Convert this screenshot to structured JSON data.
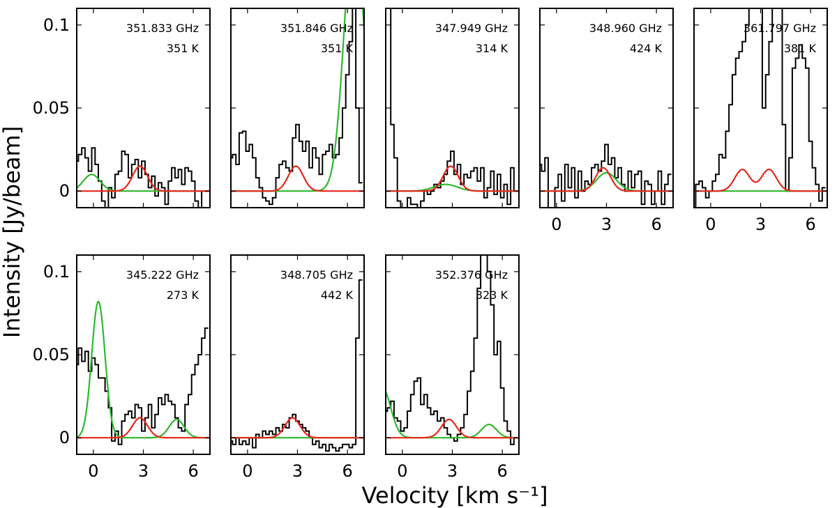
{
  "chart_data": {
    "type": "line",
    "xlabel": "Velocity [km s⁻¹]",
    "ylabel": "Intensity [Jy/beam]",
    "xlim": [
      -1,
      7
    ],
    "ylim": [
      -0.01,
      0.11
    ],
    "xticks": [
      0,
      3,
      6
    ],
    "yticks": [
      0,
      0.05,
      0.1
    ],
    "xtick_labels": [
      "0",
      "3",
      "6"
    ],
    "ytick_labels": [
      "0",
      "0.05",
      "0.1"
    ],
    "colors": {
      "observed": "#000000",
      "model_red": "#e8261a",
      "model_green": "#2eb82e"
    },
    "panels": [
      {
        "frequency": "351.833 GHz",
        "energy": "351 K",
        "red": [
          {
            "amp": 0.015,
            "center": 2.8,
            "sigma": 0.45
          }
        ],
        "green": [
          {
            "amp": 0.01,
            "center": -0.1,
            "sigma": 0.5
          }
        ],
        "spectrum": {
          "x": [
            -1.0,
            -0.8,
            -0.6,
            -0.4,
            -0.2,
            0.0,
            0.2,
            0.4,
            0.6,
            0.8,
            1.0,
            1.2,
            1.4,
            1.6,
            1.8,
            2.0,
            2.2,
            2.4,
            2.6,
            2.8,
            3.0,
            3.2,
            3.4,
            3.6,
            3.8,
            4.0,
            4.2,
            4.4,
            4.6,
            4.8,
            5.0,
            5.2,
            5.4,
            5.6,
            5.8,
            6.0,
            6.2,
            6.4,
            6.6,
            6.8
          ],
          "y": [
            0.018,
            0.022,
            0.026,
            0.02,
            0.012,
            0.026,
            0.016,
            0.006,
            -0.006,
            -0.01,
            0.002,
            -0.004,
            0.01,
            0.012,
            0.024,
            0.022,
            0.008,
            0.016,
            0.019,
            0.008,
            0.018,
            0.01,
            0.002,
            0.009,
            -0.003,
            0.005,
            0.002,
            -0.008,
            0.006,
            0.014,
            0.008,
            0.013,
            0.004,
            0.014,
            0.012,
            0.006,
            -0.006,
            -0.01,
            0.0,
            0.0
          ]
        }
      },
      {
        "frequency": "351.846 GHz",
        "energy": "351 K",
        "red": [
          {
            "amp": 0.015,
            "center": 2.9,
            "sigma": 0.45
          }
        ],
        "green": [
          {
            "amp": 0.16,
            "center": 6.4,
            "sigma": 0.6
          }
        ],
        "spectrum": {
          "x": [
            -1.0,
            -0.8,
            -0.6,
            -0.4,
            -0.2,
            0.0,
            0.2,
            0.4,
            0.6,
            0.8,
            1.0,
            1.2,
            1.4,
            1.6,
            1.8,
            2.0,
            2.2,
            2.4,
            2.6,
            2.8,
            3.0,
            3.2,
            3.4,
            3.6,
            3.8,
            4.0,
            4.2,
            4.4,
            4.6,
            4.8,
            5.0,
            5.2,
            5.4,
            5.6,
            5.8,
            6.0,
            6.2,
            6.4,
            6.6,
            6.8
          ],
          "y": [
            0.02,
            0.022,
            0.016,
            0.035,
            0.036,
            0.024,
            0.028,
            0.02,
            0.008,
            0.002,
            -0.004,
            -0.006,
            -0.008,
            -0.004,
            0.008,
            0.016,
            0.018,
            0.014,
            0.012,
            0.032,
            0.04,
            0.03,
            0.024,
            0.03,
            0.014,
            0.026,
            0.02,
            0.01,
            0.022,
            0.024,
            0.028,
            0.02,
            0.022,
            0.032,
            0.05,
            0.07,
            0.09,
            0.12,
            0.05,
            0.005
          ]
        }
      },
      {
        "frequency": "347.949 GHz",
        "energy": "314 K",
        "red": [
          {
            "amp": 0.015,
            "center": 2.9,
            "sigma": 0.45
          }
        ],
        "green": [
          {
            "amp": 0.004,
            "center": 2.6,
            "sigma": 0.7
          }
        ],
        "spectrum": {
          "x": [
            -1.0,
            -0.8,
            -0.6,
            -0.4,
            -0.2,
            0.0,
            0.2,
            0.4,
            0.6,
            0.8,
            1.0,
            1.2,
            1.4,
            1.6,
            1.8,
            2.0,
            2.2,
            2.4,
            2.6,
            2.8,
            3.0,
            3.2,
            3.4,
            3.6,
            3.8,
            4.0,
            4.2,
            4.4,
            4.6,
            4.8,
            5.0,
            5.2,
            5.4,
            5.6,
            5.8,
            6.0,
            6.2,
            6.4,
            6.6,
            6.8
          ],
          "y": [
            0.13,
            0.12,
            0.04,
            0.02,
            -0.006,
            -0.01,
            -0.014,
            -0.004,
            -0.008,
            -0.008,
            -0.012,
            -0.006,
            0.0,
            -0.002,
            0.0,
            0.004,
            0.002,
            0.006,
            0.01,
            0.018,
            0.024,
            0.01,
            0.016,
            0.004,
            0.01,
            0.008,
            0.012,
            0.014,
            0.006,
            0.014,
            -0.004,
            0.002,
            0.012,
            -0.002,
            0.01,
            -0.004,
            0.004,
            -0.008,
            0.014,
            0.0
          ]
        }
      },
      {
        "frequency": "348.960 GHz",
        "energy": "424 K",
        "red": [
          {
            "amp": 0.014,
            "center": 2.8,
            "sigma": 0.45
          }
        ],
        "green": [
          {
            "amp": 0.011,
            "center": 3.0,
            "sigma": 0.6
          }
        ],
        "spectrum": {
          "x": [
            -1.0,
            -0.8,
            -0.6,
            -0.4,
            -0.2,
            0.0,
            0.2,
            0.4,
            0.6,
            0.8,
            1.0,
            1.2,
            1.4,
            1.6,
            1.8,
            2.0,
            2.2,
            2.4,
            2.6,
            2.8,
            3.0,
            3.2,
            3.4,
            3.6,
            3.8,
            4.0,
            4.2,
            4.4,
            4.6,
            4.8,
            5.0,
            5.2,
            5.4,
            5.6,
            5.8,
            6.0,
            6.2,
            6.4,
            6.6,
            6.8
          ],
          "y": [
            0.016,
            0.012,
            0.02,
            -0.014,
            -0.01,
            0.002,
            0.01,
            -0.006,
            0.016,
            0.002,
            0.014,
            -0.004,
            0.012,
            0.0,
            0.006,
            0.004,
            0.014,
            0.016,
            0.012,
            0.018,
            0.028,
            0.016,
            0.02,
            0.008,
            0.014,
            0.004,
            0.0,
            0.012,
            0.002,
            0.01,
            0.012,
            -0.008,
            0.006,
            0.004,
            -0.008,
            0.0,
            0.012,
            -0.008,
            0.004,
            0.01
          ]
        }
      },
      {
        "frequency": "361.797 GHz",
        "energy": "381 K",
        "red": [
          {
            "amp": 0.013,
            "center": 1.9,
            "sigma": 0.45
          },
          {
            "amp": 0.013,
            "center": 3.5,
            "sigma": 0.45
          }
        ],
        "green": [],
        "spectrum": {
          "x": [
            -1.0,
            -0.8,
            -0.6,
            -0.4,
            -0.2,
            0.0,
            0.2,
            0.4,
            0.6,
            0.8,
            1.0,
            1.2,
            1.4,
            1.6,
            1.8,
            2.0,
            2.2,
            2.4,
            2.6,
            2.8,
            3.0,
            3.2,
            3.4,
            3.6,
            3.8,
            4.0,
            4.2,
            4.4,
            4.6,
            4.8,
            5.0,
            5.2,
            5.4,
            5.6,
            5.8,
            6.0,
            6.2,
            6.4,
            6.6,
            6.8
          ],
          "y": [
            -0.01,
            0.004,
            0.006,
            0.002,
            -0.004,
            0.0,
            0.006,
            0.01,
            0.022,
            0.02,
            0.036,
            0.052,
            0.07,
            0.08,
            0.084,
            0.09,
            0.1,
            0.12,
            0.13,
            0.12,
            0.12,
            0.05,
            0.07,
            0.09,
            0.11,
            0.12,
            0.12,
            0.04,
            0.0,
            0.02,
            0.074,
            0.08,
            0.088,
            0.08,
            0.074,
            0.03,
            0.014,
            0.004,
            -0.006,
            0.002
          ]
        }
      },
      {
        "frequency": "345.222 GHz",
        "energy": "273 K",
        "red": [
          {
            "amp": 0.012,
            "center": 2.8,
            "sigma": 0.45
          }
        ],
        "green": [
          {
            "amp": 0.082,
            "center": 0.3,
            "sigma": 0.4
          },
          {
            "amp": 0.011,
            "center": 5.0,
            "sigma": 0.45
          }
        ],
        "spectrum": {
          "x": [
            -1.0,
            -0.8,
            -0.6,
            -0.4,
            -0.2,
            0.0,
            0.2,
            0.4,
            0.6,
            0.8,
            1.0,
            1.2,
            1.4,
            1.6,
            1.8,
            2.0,
            2.2,
            2.4,
            2.6,
            2.8,
            3.0,
            3.2,
            3.4,
            3.6,
            3.8,
            4.0,
            4.2,
            4.4,
            4.6,
            4.8,
            5.0,
            5.2,
            5.4,
            5.6,
            5.8,
            6.0,
            6.2,
            6.4,
            6.6,
            6.8
          ],
          "y": [
            0.044,
            0.054,
            0.046,
            0.052,
            0.04,
            0.048,
            0.044,
            0.036,
            0.036,
            0.028,
            0.018,
            -0.002,
            0.004,
            -0.004,
            0.01,
            0.014,
            0.016,
            0.012,
            0.02,
            0.018,
            0.004,
            0.012,
            0.02,
            0.006,
            0.014,
            0.024,
            0.02,
            0.026,
            0.022,
            0.02,
            0.012,
            0.006,
            0.004,
            0.02,
            0.026,
            0.038,
            0.044,
            0.05,
            0.06,
            0.066
          ]
        }
      },
      {
        "frequency": "348.705 GHz",
        "energy": "442 K",
        "red": [
          {
            "amp": 0.012,
            "center": 2.7,
            "sigma": 0.45
          }
        ],
        "green": [],
        "spectrum": {
          "x": [
            -1.0,
            -0.8,
            -0.6,
            -0.4,
            -0.2,
            0.0,
            0.2,
            0.4,
            0.6,
            0.8,
            1.0,
            1.2,
            1.4,
            1.6,
            1.8,
            2.0,
            2.2,
            2.4,
            2.6,
            2.8,
            3.0,
            3.2,
            3.4,
            3.6,
            3.8,
            4.0,
            4.2,
            4.4,
            4.6,
            4.8,
            5.0,
            5.2,
            5.4,
            5.6,
            5.8,
            6.0,
            6.2,
            6.4,
            6.6,
            6.8
          ],
          "y": [
            -0.002,
            -0.004,
            0.0,
            -0.004,
            -0.002,
            -0.004,
            0.0,
            -0.006,
            0.002,
            0.0,
            0.004,
            0.002,
            0.004,
            0.002,
            0.006,
            0.004,
            0.008,
            0.006,
            0.012,
            0.014,
            0.01,
            0.008,
            0.006,
            0.004,
            0.0,
            -0.004,
            -0.002,
            -0.006,
            -0.004,
            -0.008,
            -0.004,
            -0.006,
            -0.008,
            -0.006,
            -0.004,
            -0.004,
            -0.006,
            -0.004,
            0.06,
            0.095
          ]
        }
      },
      {
        "frequency": "352.376 GHz",
        "energy": "323 K",
        "red": [
          {
            "amp": 0.011,
            "center": 2.8,
            "sigma": 0.45
          }
        ],
        "green": [
          {
            "amp": 0.03,
            "center": -1.2,
            "sigma": 0.5
          },
          {
            "amp": 0.008,
            "center": 5.2,
            "sigma": 0.45
          }
        ],
        "spectrum": {
          "x": [
            -1.0,
            -0.8,
            -0.6,
            -0.4,
            -0.2,
            0.0,
            0.2,
            0.4,
            0.6,
            0.8,
            1.0,
            1.2,
            1.4,
            1.6,
            1.8,
            2.0,
            2.2,
            2.4,
            2.6,
            2.8,
            3.0,
            3.2,
            3.4,
            3.6,
            3.8,
            4.0,
            4.2,
            4.4,
            4.6,
            4.8,
            5.0,
            5.2,
            5.4,
            5.6,
            5.8,
            6.0,
            6.2,
            6.4,
            6.6,
            6.8
          ],
          "y": [
            0.016,
            0.018,
            0.022,
            0.012,
            0.01,
            0.004,
            0.006,
            0.016,
            0.026,
            0.034,
            0.036,
            0.02,
            0.026,
            0.018,
            0.014,
            0.016,
            0.01,
            0.012,
            0.006,
            0.002,
            0.0,
            -0.002,
            0.002,
            0.006,
            0.014,
            0.028,
            0.04,
            0.06,
            0.09,
            0.11,
            0.12,
            0.1,
            0.08,
            0.05,
            0.058,
            0.03,
            0.01,
            0.004,
            -0.004,
            0.0
          ]
        }
      }
    ]
  }
}
